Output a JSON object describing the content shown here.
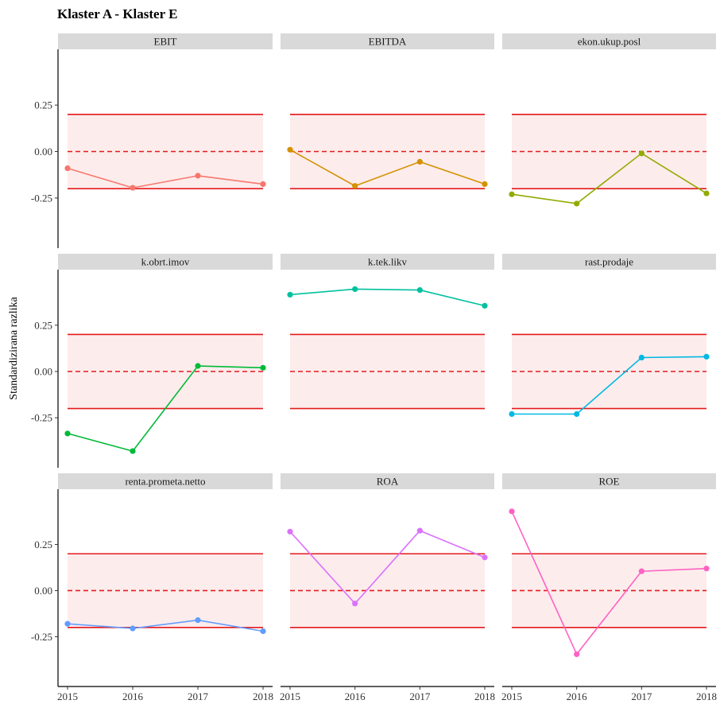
{
  "title": "Klaster A - Klaster E",
  "ylabel": "Standardizirana razlika",
  "chart_data": {
    "type": "line",
    "title": "Klaster A - Klaster E",
    "xlabel": "",
    "ylabel": "Standardizirana razlika",
    "x": [
      2015,
      2016,
      2017,
      2018
    ],
    "x_tick_labels": [
      "2015",
      "2016",
      "2017",
      "2018"
    ],
    "y_ticks": [
      0.25,
      0,
      -0.25
    ],
    "y_tick_labels": [
      "0.25",
      "0.00",
      "-0.25"
    ],
    "ylim": [
      -0.52,
      0.55
    ],
    "reference_lines": {
      "solid": [
        0.2,
        -0.2
      ],
      "dashed": [
        0
      ],
      "band": [
        -0.2,
        0.2
      ]
    },
    "reference_color": "#e41a1c",
    "band_color": "#fdecec",
    "facets": [
      {
        "name": "EBIT",
        "color": "#f8766d",
        "values": [
          -0.09,
          -0.195,
          -0.13,
          -0.175
        ]
      },
      {
        "name": "EBITDA",
        "color": "#d39200",
        "values": [
          0.01,
          -0.185,
          -0.055,
          -0.175
        ]
      },
      {
        "name": "ekon.ukup.posl",
        "color": "#93aa00",
        "values": [
          -0.23,
          -0.28,
          -0.01,
          -0.225
        ]
      },
      {
        "name": "k.obrt.imov",
        "color": "#00ba38",
        "values": [
          -0.335,
          -0.43,
          0.03,
          0.02
        ]
      },
      {
        "name": "k.tek.likv",
        "color": "#00c19f",
        "values": [
          0.415,
          0.445,
          0.44,
          0.355
        ]
      },
      {
        "name": "rast.prodaje",
        "color": "#00b9e3",
        "values": [
          -0.23,
          -0.23,
          0.075,
          0.08
        ]
      },
      {
        "name": "renta.prometa.netto",
        "color": "#619cff",
        "values": [
          -0.18,
          -0.205,
          -0.16,
          -0.22
        ]
      },
      {
        "name": "ROA",
        "color": "#db72fb",
        "values": [
          0.32,
          -0.07,
          0.325,
          0.18
        ]
      },
      {
        "name": "ROE",
        "color": "#ff61c3",
        "values": [
          0.43,
          -0.345,
          0.105,
          0.12
        ]
      }
    ]
  }
}
